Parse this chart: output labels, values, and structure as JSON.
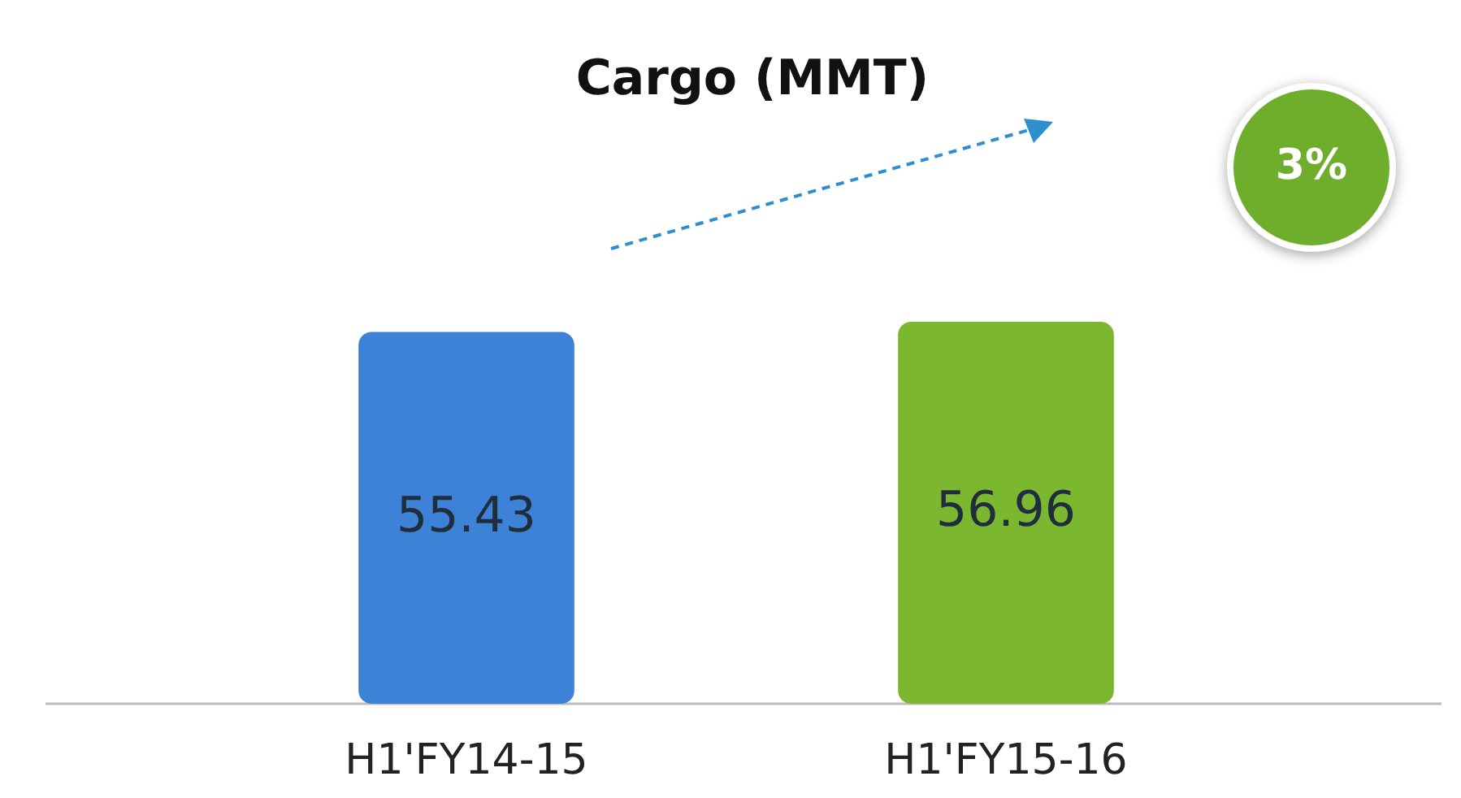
{
  "chart_data": {
    "type": "bar",
    "title": "Cargo (MMT)",
    "categories": [
      "H1'FY14-15",
      "H1'FY15-16"
    ],
    "values": [
      55.43,
      56.96
    ],
    "colors": [
      "#3d82d6",
      "#7cb82f"
    ],
    "data_labels": true,
    "annotations": [
      "3%"
    ]
  }
}
